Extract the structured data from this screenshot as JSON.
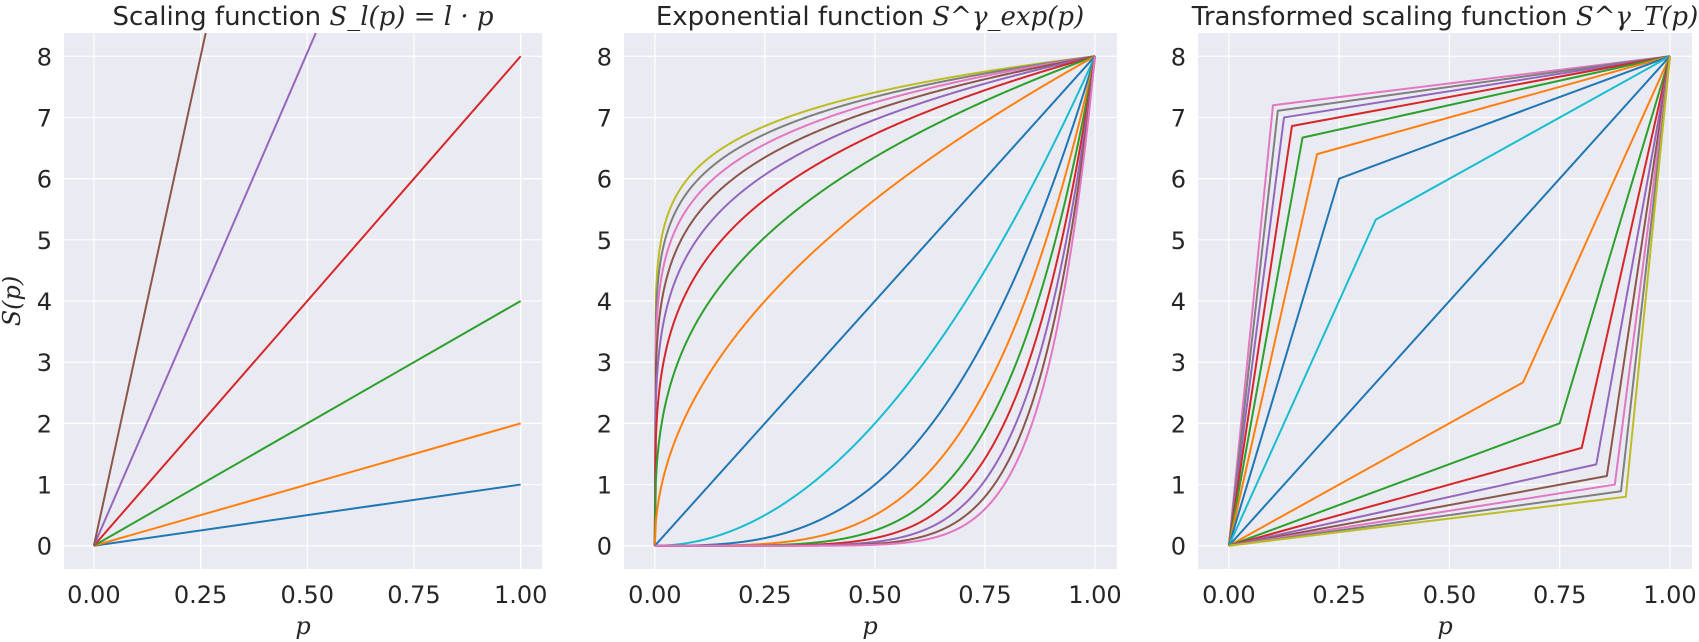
{
  "figure": {
    "background": "#ffffff",
    "plot_background": "#eaeaf2",
    "grid": true
  },
  "chart_data": [
    {
      "type": "line",
      "title": "Scaling function ",
      "title_math": "S_l(p) = l · p",
      "xlabel": "p",
      "ylabel": "S(p)",
      "xlim": [
        -0.07,
        1.05
      ],
      "ylim": [
        -0.38,
        8.38
      ],
      "xticks": [
        0,
        0.25,
        0.5,
        0.75,
        1
      ],
      "xtick_labels": [
        "0.00",
        "0.25",
        "0.50",
        "0.75",
        "1.00"
      ],
      "yticks": [
        0,
        1,
        2,
        3,
        4,
        5,
        6,
        7,
        8
      ],
      "ytick_labels": [
        "0",
        "1",
        "2",
        "3",
        "4",
        "5",
        "6",
        "7",
        "8"
      ],
      "series": [
        {
          "color": "#1f77b4",
          "x": [
            0,
            1
          ],
          "y": [
            0,
            1
          ]
        },
        {
          "color": "#ff7f0e",
          "x": [
            0,
            1
          ],
          "y": [
            0,
            2
          ]
        },
        {
          "color": "#2ca02c",
          "x": [
            0,
            1
          ],
          "y": [
            0,
            4
          ]
        },
        {
          "color": "#d62728",
          "x": [
            0,
            1
          ],
          "y": [
            0,
            8
          ]
        },
        {
          "color": "#9467bd",
          "x": [
            0,
            0.52
          ],
          "y": [
            0,
            8.38
          ]
        },
        {
          "color": "#8c564b",
          "x": [
            0,
            0.262
          ],
          "y": [
            0,
            8.38
          ]
        }
      ]
    },
    {
      "type": "line",
      "title": "Exponential function ",
      "title_math": "S^γ_exp(p)",
      "xlabel": "p",
      "ylabel": "",
      "xlim": [
        -0.07,
        1.05
      ],
      "ylim": [
        -0.38,
        8.38
      ],
      "xticks": [
        0,
        0.25,
        0.5,
        0.75,
        1
      ],
      "xtick_labels": [
        "0.00",
        "0.25",
        "0.50",
        "0.75",
        "1.00"
      ],
      "yticks": [
        0,
        1,
        2,
        3,
        4,
        5,
        6,
        7,
        8
      ],
      "ytick_labels": [
        "0",
        "1",
        "2",
        "3",
        "4",
        "5",
        "6",
        "7",
        "8"
      ],
      "function": "y = 8 * x^gamma",
      "series": [
        {
          "color": "#bcbd22",
          "gamma": 0.111
        },
        {
          "color": "#7f7f7f",
          "gamma": 0.125
        },
        {
          "color": "#e377c2",
          "gamma": 0.143
        },
        {
          "color": "#8c564b",
          "gamma": 0.167
        },
        {
          "color": "#9467bd",
          "gamma": 0.2
        },
        {
          "color": "#d62728",
          "gamma": 0.25
        },
        {
          "color": "#2ca02c",
          "gamma": 0.333
        },
        {
          "color": "#ff7f0e",
          "gamma": 0.5
        },
        {
          "color": "#1f77b4",
          "gamma": 1
        },
        {
          "color": "#17becf",
          "gamma": 2
        },
        {
          "color": "#1f77b4",
          "gamma": 3
        },
        {
          "color": "#ff7f0e",
          "gamma": 4
        },
        {
          "color": "#2ca02c",
          "gamma": 5
        },
        {
          "color": "#d62728",
          "gamma": 6
        },
        {
          "color": "#9467bd",
          "gamma": 7
        },
        {
          "color": "#8c564b",
          "gamma": 8
        },
        {
          "color": "#e377c2",
          "gamma": 9
        }
      ]
    },
    {
      "type": "line",
      "title": "Transformed scaling function ",
      "title_math": "S^γ_T(p)",
      "xlabel": "p",
      "ylabel": "",
      "xlim": [
        -0.07,
        1.05
      ],
      "ylim": [
        -0.38,
        8.38
      ],
      "xticks": [
        0,
        0.25,
        0.5,
        0.75,
        1
      ],
      "xtick_labels": [
        "0.00",
        "0.25",
        "0.50",
        "0.75",
        "1.00"
      ],
      "yticks": [
        0,
        1,
        2,
        3,
        4,
        5,
        6,
        7,
        8
      ],
      "ytick_labels": [
        "0",
        "1",
        "2",
        "3",
        "4",
        "5",
        "6",
        "7",
        "8"
      ],
      "series": [
        {
          "color": "#e377c2",
          "x": [
            0,
            0.1,
            1
          ],
          "y": [
            0,
            7.2,
            8
          ]
        },
        {
          "color": "#7f7f7f",
          "x": [
            0,
            0.111,
            1
          ],
          "y": [
            0,
            7.11,
            8
          ]
        },
        {
          "color": "#9467bd",
          "x": [
            0,
            0.125,
            1
          ],
          "y": [
            0,
            7.0,
            8
          ]
        },
        {
          "color": "#d62728",
          "x": [
            0,
            0.143,
            1
          ],
          "y": [
            0,
            6.86,
            8
          ]
        },
        {
          "color": "#2ca02c",
          "x": [
            0,
            0.167,
            1
          ],
          "y": [
            0,
            6.67,
            8
          ]
        },
        {
          "color": "#ff7f0e",
          "x": [
            0,
            0.2,
            1
          ],
          "y": [
            0,
            6.4,
            8
          ]
        },
        {
          "color": "#1f77b4",
          "x": [
            0,
            0.25,
            1
          ],
          "y": [
            0,
            6.0,
            8
          ]
        },
        {
          "color": "#17becf",
          "x": [
            0,
            0.333,
            1
          ],
          "y": [
            0,
            5.33,
            8
          ]
        },
        {
          "color": "#1f77b4",
          "x": [
            0,
            1
          ],
          "y": [
            0,
            8
          ]
        },
        {
          "color": "#ff7f0e",
          "x": [
            0,
            0.667,
            1
          ],
          "y": [
            0,
            2.67,
            8
          ]
        },
        {
          "color": "#2ca02c",
          "x": [
            0,
            0.75,
            1
          ],
          "y": [
            0,
            2.0,
            8
          ]
        },
        {
          "color": "#d62728",
          "x": [
            0,
            0.8,
            1
          ],
          "y": [
            0,
            1.6,
            8
          ]
        },
        {
          "color": "#9467bd",
          "x": [
            0,
            0.833,
            1
          ],
          "y": [
            0,
            1.33,
            8
          ]
        },
        {
          "color": "#8c564b",
          "x": [
            0,
            0.857,
            1
          ],
          "y": [
            0,
            1.14,
            8
          ]
        },
        {
          "color": "#e377c2",
          "x": [
            0,
            0.875,
            1
          ],
          "y": [
            0,
            1.0,
            8
          ]
        },
        {
          "color": "#7f7f7f",
          "x": [
            0,
            0.889,
            1
          ],
          "y": [
            0,
            0.89,
            8
          ]
        },
        {
          "color": "#bcbd22",
          "x": [
            0,
            0.9,
            1
          ],
          "y": [
            0,
            0.8,
            8
          ]
        }
      ]
    }
  ]
}
